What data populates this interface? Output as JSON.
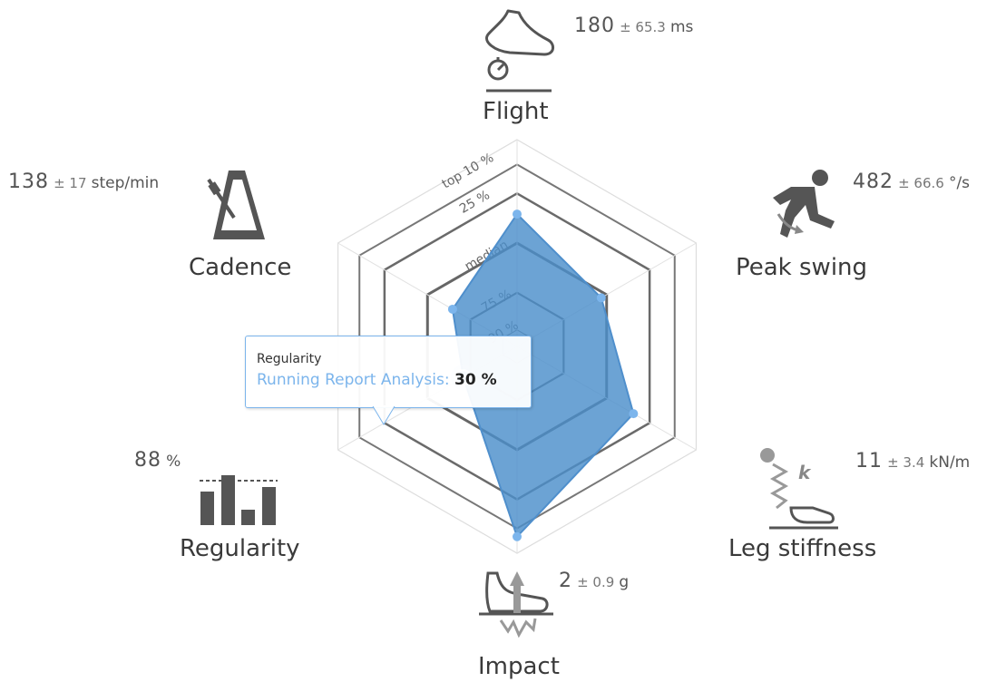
{
  "chart_data": {
    "type": "radar",
    "axes": [
      "Flight",
      "Peak swing",
      "Leg stiffness",
      "Impact",
      "Regularity",
      "Cadence"
    ],
    "ring_labels": [
      "top 10 %",
      "25 %",
      "median",
      "75 %",
      "90 %"
    ],
    "series": [
      {
        "name": "Running Report Analysis",
        "color": "#4c8fca",
        "values_percent": [
          64,
          47,
          65,
          92,
          30,
          36
        ]
      }
    ],
    "metrics": [
      {
        "axis": "Flight",
        "value": "180",
        "pm": "± 65.3",
        "unit": "ms",
        "icon": "shoe-stopwatch-icon"
      },
      {
        "axis": "Peak swing",
        "value": "482",
        "pm": "± 66.6",
        "unit": "°/s",
        "icon": "runner-icon"
      },
      {
        "axis": "Leg stiffness",
        "value": "11",
        "pm": "± 3.4",
        "unit": "kN/m",
        "icon": "spring-shoe-icon"
      },
      {
        "axis": "Impact",
        "value": "2",
        "pm": "± 0.9",
        "unit": "g",
        "icon": "foot-impact-icon"
      },
      {
        "axis": "Regularity",
        "value": "88",
        "pm": "",
        "unit": "%",
        "icon": "bar-regularity-icon"
      },
      {
        "axis": "Cadence",
        "value": "138",
        "pm": "± 17",
        "unit": "step/min",
        "icon": "metronome-icon"
      }
    ]
  },
  "tooltip": {
    "title": "Regularity",
    "series": "Running Report Analysis:",
    "value": "30 %"
  }
}
